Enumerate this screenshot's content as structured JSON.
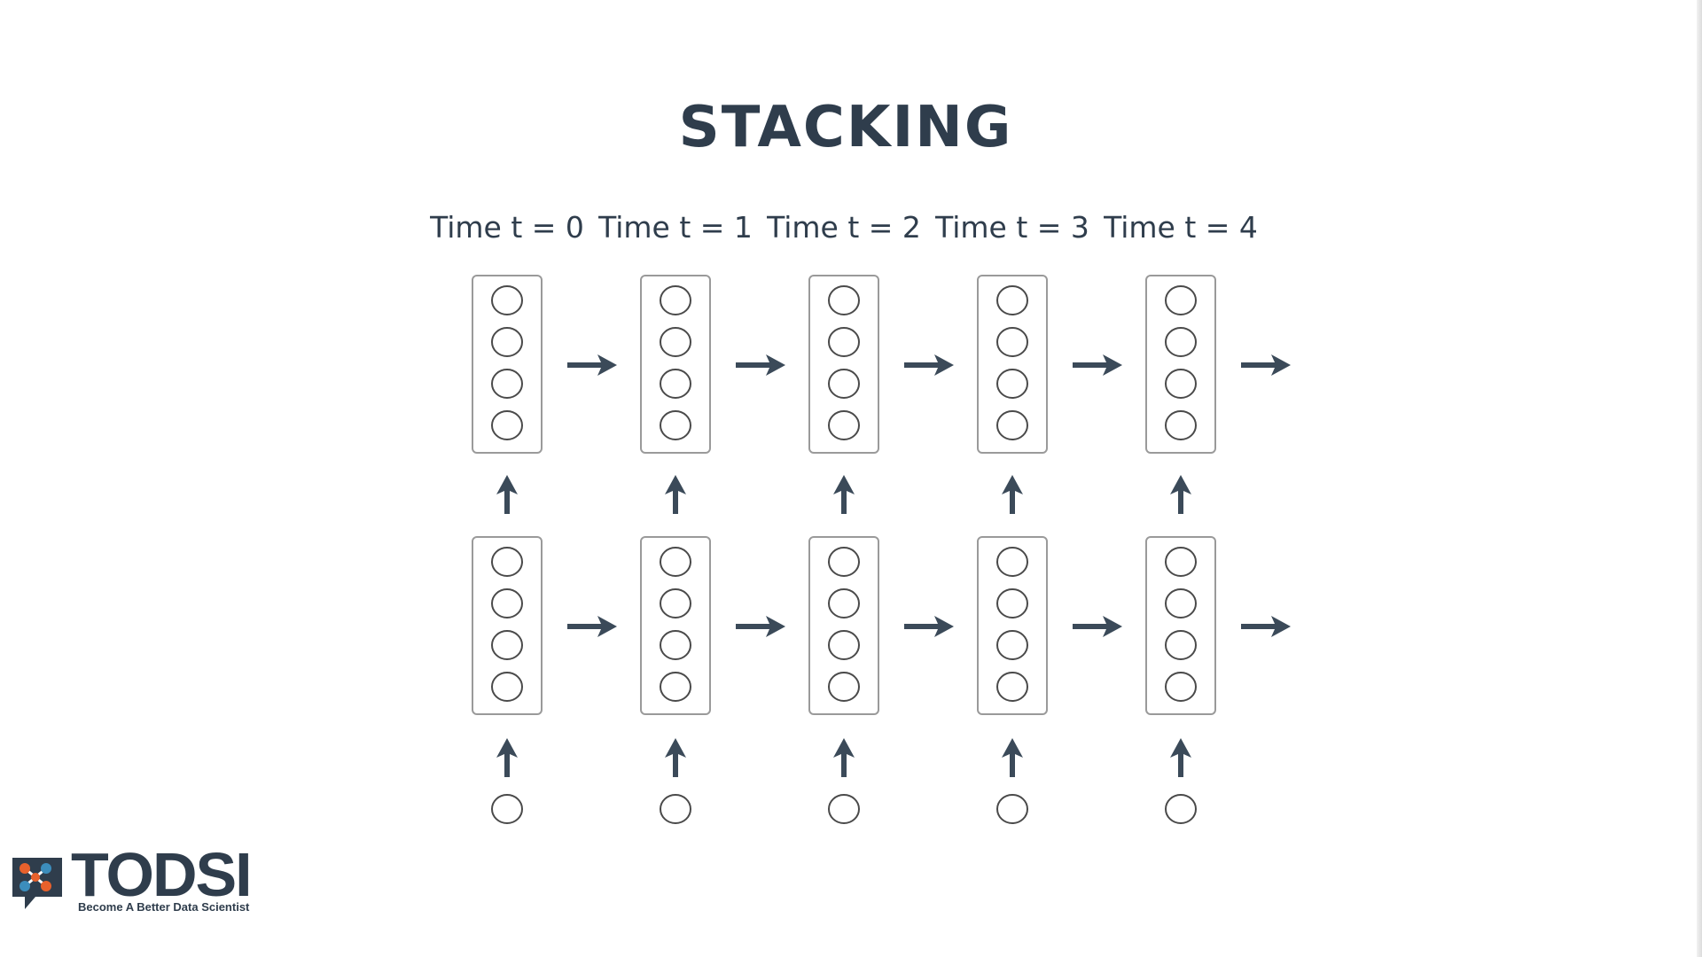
{
  "title": "STACKING",
  "time_labels": [
    "Time t = 0",
    "Time t = 1",
    "Time t = 2",
    "Time t = 3",
    "Time t = 4"
  ],
  "structure": {
    "layers": 2,
    "nodes_per_layer": 4,
    "input_nodes_per_step": 1
  },
  "logo": {
    "name": "TODSI",
    "tagline": "Become A Better Data Scientist"
  },
  "colors": {
    "text": "#2f3d4c",
    "arrow": "#3b4a59",
    "box_border": "#9a9a9a",
    "node_border": "#4a4a4a",
    "logo_orange": "#e8612c",
    "logo_blue": "#3c8dbc"
  }
}
